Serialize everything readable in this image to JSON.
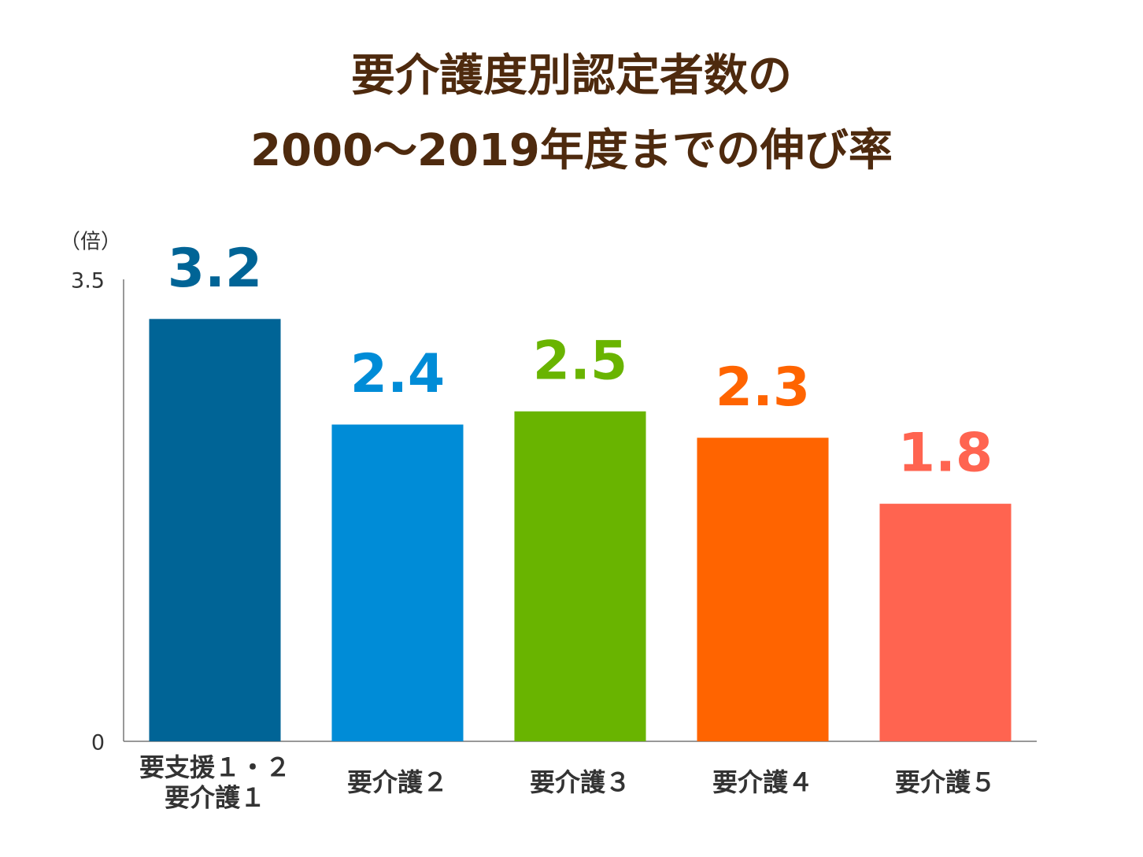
{
  "chart_data": {
    "type": "bar",
    "title": "要介護度別認定者数の\n2000～2019年度までの伸び率",
    "y_label": "（倍）",
    "categories": [
      "要支援１・２\n要介護１",
      "要介護２",
      "要介護３",
      "要介護４",
      "要介護５"
    ],
    "values": [
      3.2,
      2.4,
      2.5,
      2.3,
      1.8
    ],
    "colors": [
      "#006496",
      "#008cd7",
      "#69b400",
      "#ff6400",
      "#ff6450"
    ],
    "ylim": [
      0,
      3.5
    ],
    "yticks": [
      0,
      3.5
    ],
    "grid": false
  }
}
